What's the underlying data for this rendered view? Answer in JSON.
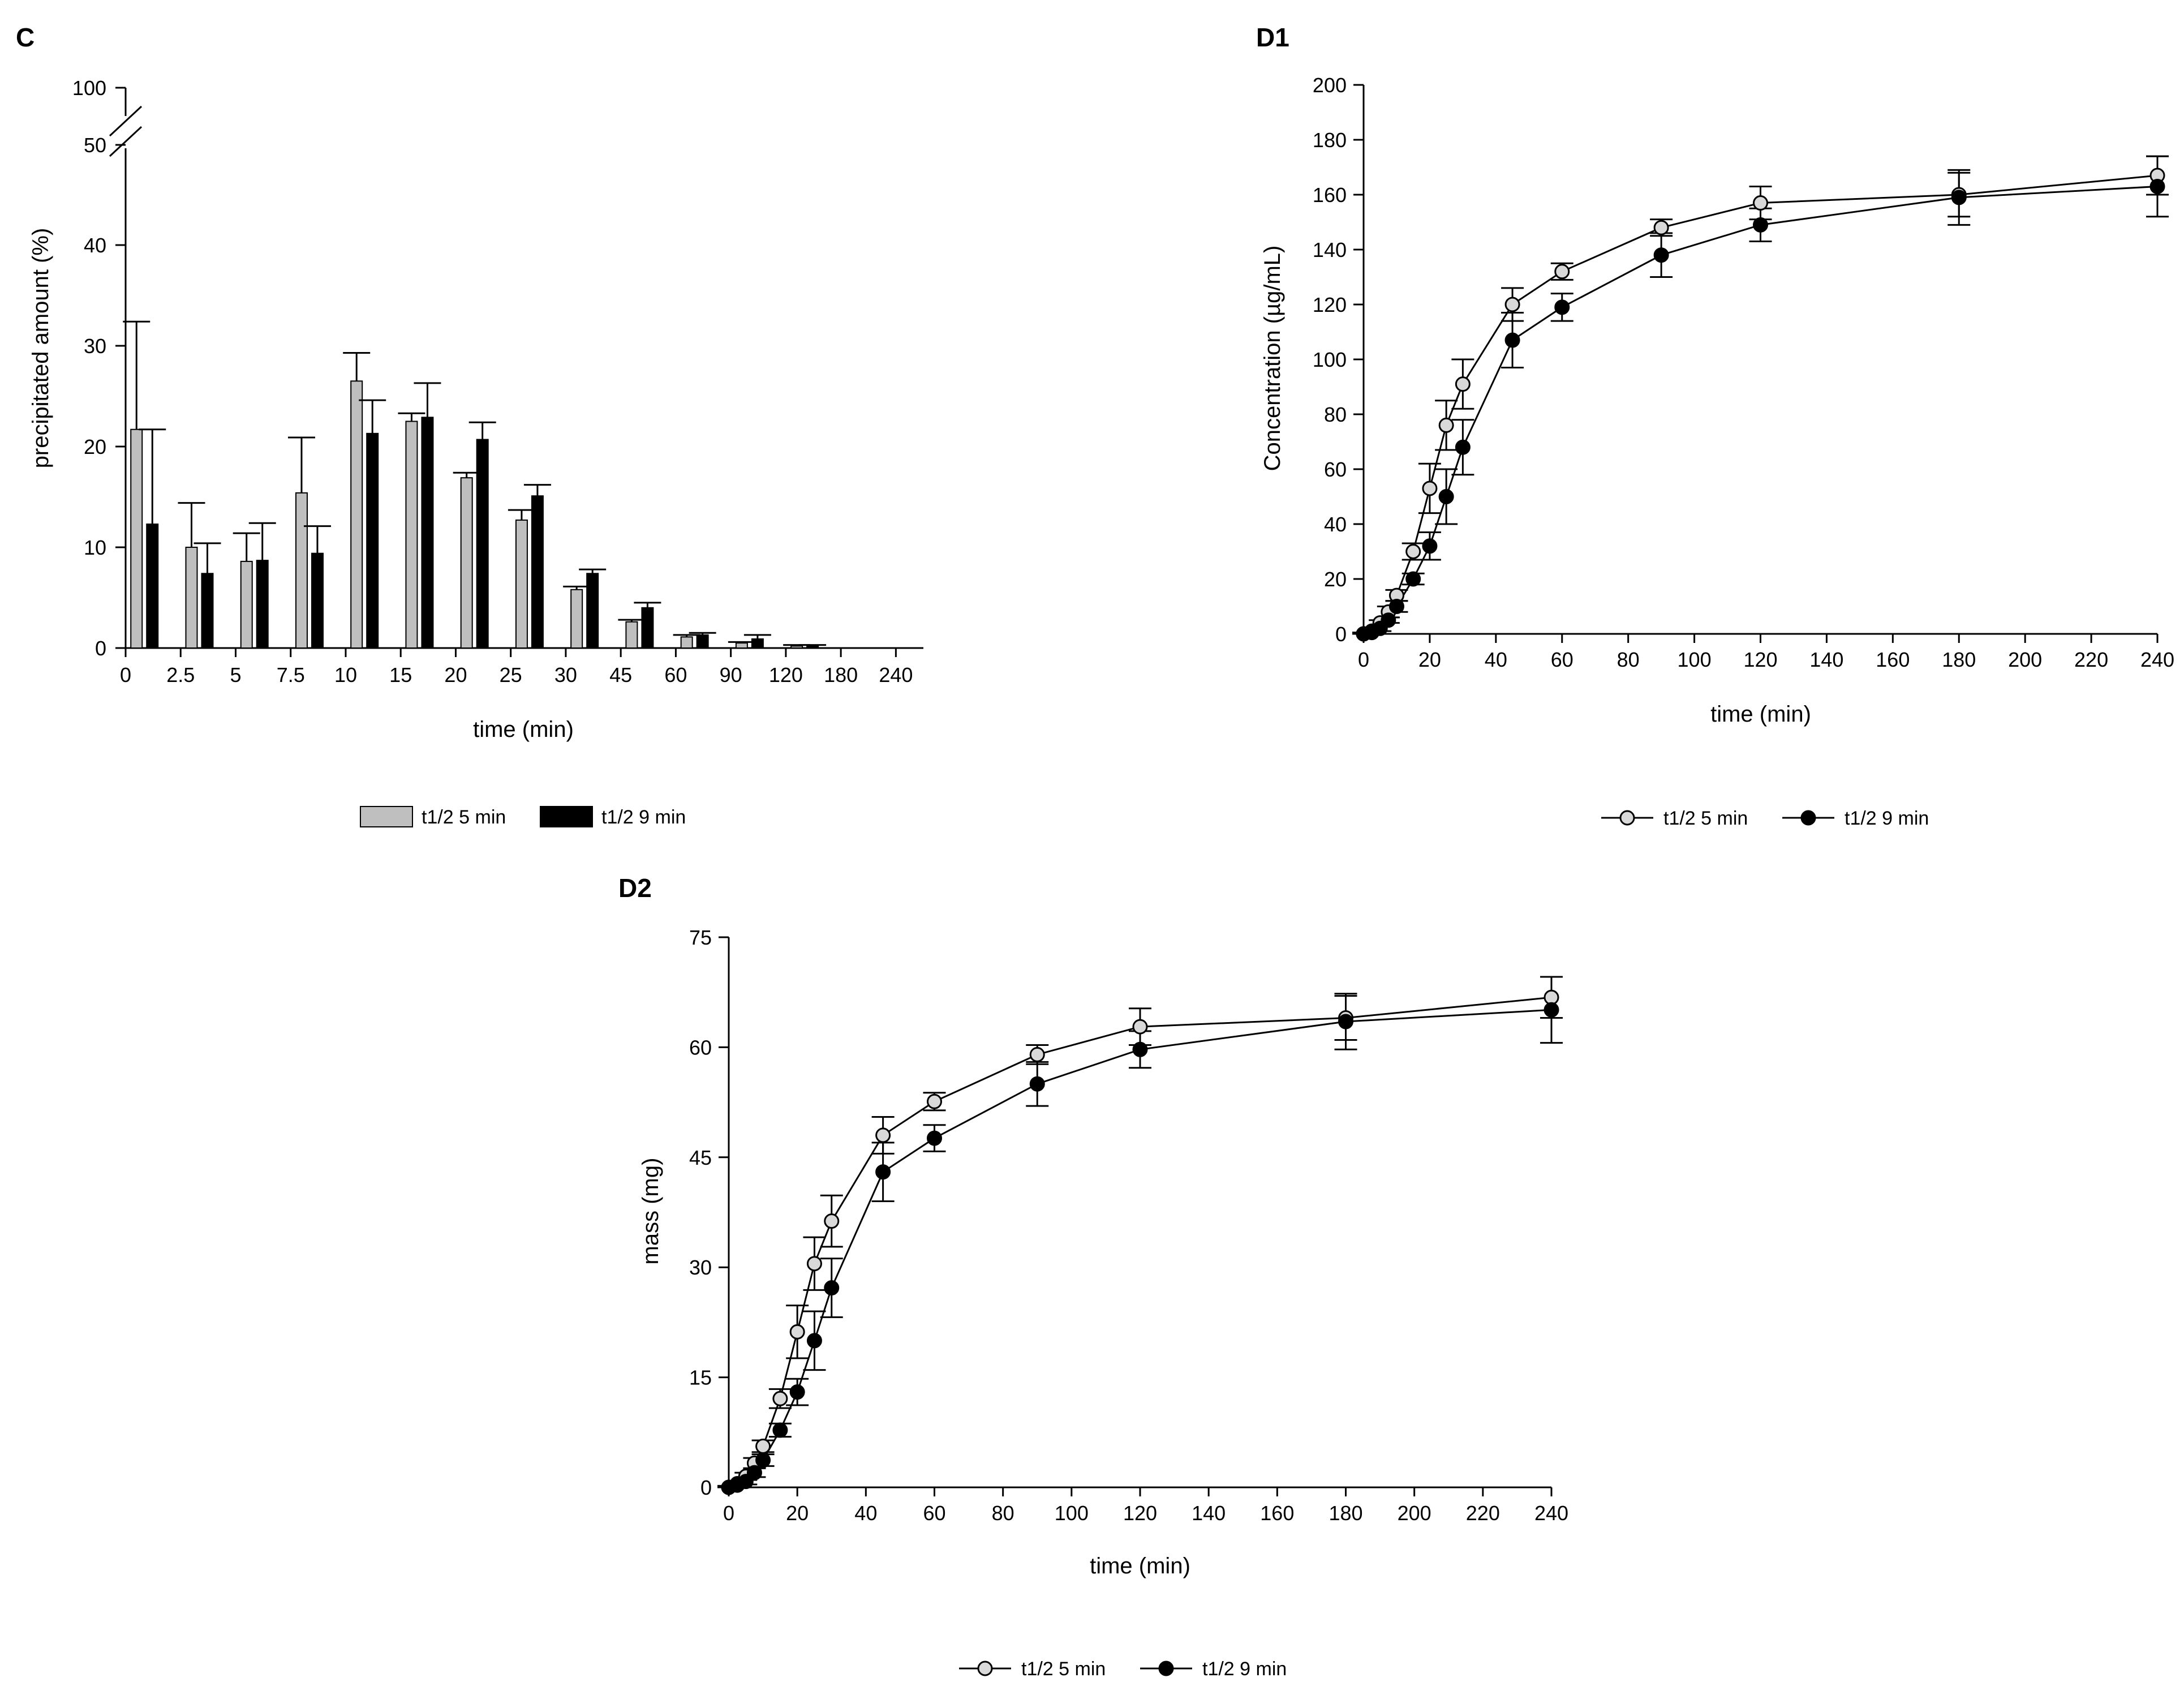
{
  "figure": {
    "panels": [
      "C",
      "D1",
      "D2"
    ]
  },
  "chart_data": [
    {
      "id": "C",
      "panel_label": "C",
      "type": "bar",
      "categories": [
        "2.5",
        "5",
        "7.5",
        "10",
        "15",
        "20",
        "25",
        "30",
        "45",
        "60",
        "90",
        "120",
        "180",
        "240"
      ],
      "x_start_label": "0",
      "series": [
        {
          "name": "t1/2 5 min",
          "color": "#bfbfbf",
          "values": [
            21.7,
            10.0,
            8.6,
            15.4,
            26.5,
            22.5,
            16.9,
            12.7,
            5.8,
            2.6,
            1.1,
            0.5,
            0.2,
            0.0
          ],
          "err": [
            10.7,
            4.4,
            2.8,
            5.5,
            2.8,
            0.8,
            0.5,
            1.0,
            0.3,
            0.2,
            0.2,
            0.1,
            0.1,
            0.0
          ]
        },
        {
          "name": "t1/2 9 min",
          "color": "#000000",
          "values": [
            12.3,
            7.4,
            8.7,
            9.4,
            21.3,
            22.9,
            20.7,
            15.1,
            7.4,
            4.0,
            1.3,
            0.9,
            0.2,
            0.0
          ],
          "err": [
            9.4,
            3.0,
            3.7,
            2.7,
            3.3,
            3.4,
            1.7,
            1.1,
            0.4,
            0.5,
            0.2,
            0.4,
            0.1,
            0.0
          ]
        }
      ],
      "xlabel": "time (min)",
      "ylabel": "precipitated amount (%)",
      "ylim": [
        0,
        100
      ],
      "axis_break": [
        50,
        100
      ],
      "yticks": [
        "0",
        "10",
        "20",
        "30",
        "40",
        "50",
        "100"
      ],
      "legend": [
        "t1/2 5 min",
        "t1/2 9 min"
      ],
      "legend_position": "bottom"
    },
    {
      "id": "D1",
      "panel_label": "D1",
      "type": "line",
      "x": [
        0,
        2.5,
        5,
        7.5,
        10,
        15,
        20,
        25,
        30,
        45,
        60,
        90,
        120,
        180,
        240
      ],
      "series": [
        {
          "name": "t1/2 5 min",
          "marker": "open-circle",
          "values": [
            0,
            1,
            4,
            8,
            14,
            30,
            53,
            76,
            91,
            120,
            132,
            148,
            157,
            160,
            167
          ],
          "err": [
            0.5,
            0.5,
            1,
            2,
            2,
            3,
            9,
            9,
            9,
            6,
            3,
            3,
            6,
            8,
            7
          ]
        },
        {
          "name": "t1/2 9 min",
          "marker": "filled-circle",
          "values": [
            0,
            0.5,
            2,
            5,
            10,
            20,
            32,
            50,
            68,
            107,
            119,
            138,
            149,
            159,
            163
          ],
          "err": [
            0.5,
            0.5,
            1,
            1,
            2,
            2,
            5,
            10,
            10,
            10,
            5,
            8,
            6,
            10,
            11
          ]
        }
      ],
      "xlabel": "time (min)",
      "ylabel": "Concentration (µg/mL)",
      "xlim": [
        0,
        240
      ],
      "ylim": [
        0,
        200
      ],
      "xticks": [
        "0",
        "20",
        "40",
        "60",
        "80",
        "100",
        "120",
        "140",
        "160",
        "180",
        "200",
        "220",
        "240"
      ],
      "yticks": [
        "0",
        "20",
        "40",
        "60",
        "80",
        "100",
        "120",
        "140",
        "160",
        "180",
        "200"
      ],
      "legend": [
        "t1/2 5 min",
        "t1/2 9 min"
      ],
      "legend_position": "bottom"
    },
    {
      "id": "D2",
      "panel_label": "D2",
      "type": "line",
      "x": [
        0,
        2.5,
        5,
        7.5,
        10,
        15,
        20,
        25,
        30,
        45,
        60,
        90,
        120,
        180,
        240
      ],
      "series": [
        {
          "name": "t1/2 5 min",
          "marker": "open-circle",
          "values": [
            0,
            0.5,
            1.5,
            3.3,
            5.6,
            12.1,
            21.2,
            30.5,
            36.3,
            48.0,
            52.6,
            59.0,
            62.8,
            64.0,
            66.8
          ],
          "err": [
            0.2,
            0.3,
            0.5,
            0.7,
            0.8,
            1.3,
            3.6,
            3.6,
            3.5,
            2.5,
            1.2,
            1.3,
            2.5,
            3.0,
            2.8
          ]
        },
        {
          "name": "t1/2 9 min",
          "marker": "filled-circle",
          "values": [
            0,
            0.3,
            0.8,
            2.0,
            3.7,
            7.8,
            13.0,
            20.0,
            27.2,
            43.0,
            47.6,
            55.0,
            59.7,
            63.5,
            65.1
          ],
          "err": [
            0.2,
            0.3,
            0.4,
            0.6,
            0.8,
            0.9,
            1.8,
            4.0,
            4.0,
            4.0,
            1.8,
            3.0,
            2.5,
            3.8,
            4.5
          ]
        }
      ],
      "xlabel": "time (min)",
      "ylabel": "mass (mg)",
      "xlim": [
        0,
        240
      ],
      "ylim": [
        0,
        75
      ],
      "xticks": [
        "0",
        "20",
        "40",
        "60",
        "80",
        "100",
        "120",
        "140",
        "160",
        "180",
        "200",
        "220",
        "240"
      ],
      "yticks": [
        "0",
        "15",
        "30",
        "45",
        "60",
        "75"
      ],
      "legend": [
        "t1/2 5 min",
        "t1/2 9 min"
      ],
      "legend_position": "bottom"
    }
  ]
}
